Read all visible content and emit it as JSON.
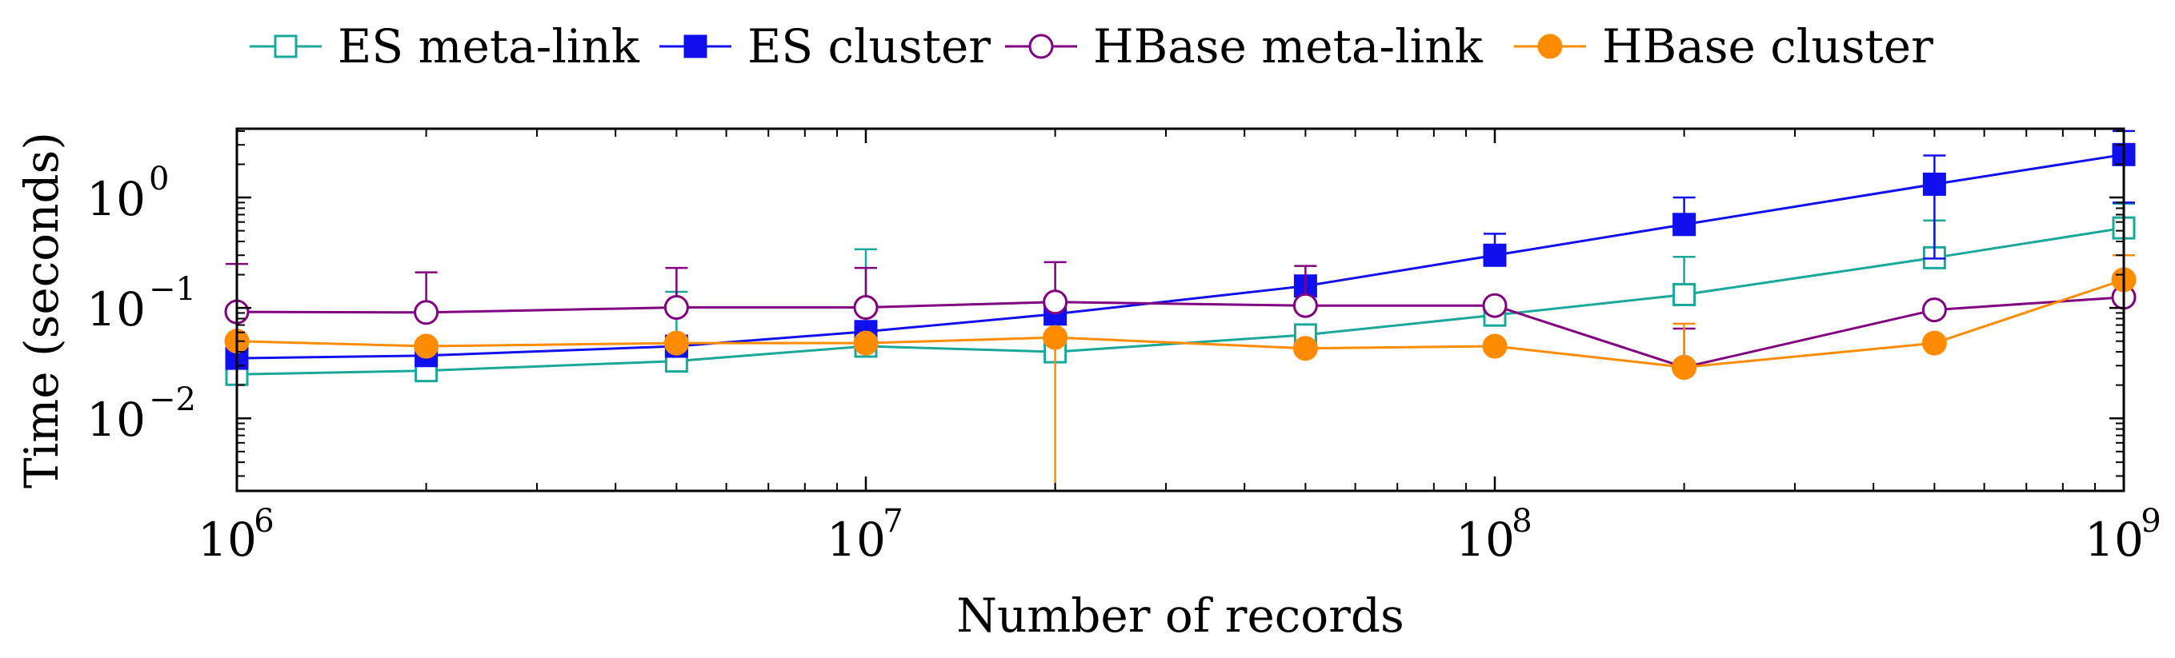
{
  "chart_data": {
    "type": "line",
    "title": "",
    "xlabel": "Number of records",
    "ylabel": "Time (seconds)",
    "xscale": "log",
    "yscale": "log",
    "xlim": [
      1000000,
      1000000000
    ],
    "ylim": [
      0.0022,
      4.2
    ],
    "x_ticks": [
      {
        "value": 1000000,
        "base": "10",
        "exp": "6"
      },
      {
        "value": 10000000,
        "base": "10",
        "exp": "7"
      },
      {
        "value": 100000000,
        "base": "10",
        "exp": "8"
      },
      {
        "value": 1000000000,
        "base": "10",
        "exp": "9"
      }
    ],
    "y_ticks": [
      {
        "value": 0.01,
        "base": "10",
        "exp": "−2"
      },
      {
        "value": 0.1,
        "base": "10",
        "exp": "−1"
      },
      {
        "value": 1,
        "base": "10",
        "exp": "0"
      }
    ],
    "grid": false,
    "legend_position": "top",
    "x": [
      1000000,
      2000000,
      5000000,
      10000000,
      20000000,
      50000000,
      100000000,
      200000000,
      500000000,
      1000000000
    ],
    "series": [
      {
        "name": "ES meta-link",
        "color": "#1aa89a",
        "marker": "square-open",
        "values": [
          0.025,
          0.027,
          0.033,
          0.045,
          0.04,
          0.057,
          0.086,
          0.132,
          0.285,
          0.53
        ],
        "err_upper": [
          null,
          null,
          0.14,
          0.34,
          null,
          null,
          null,
          0.29,
          0.62,
          0.88
        ],
        "err_lower": [
          null,
          null,
          null,
          null,
          null,
          null,
          null,
          null,
          null,
          null
        ]
      },
      {
        "name": "ES cluster",
        "color": "#1010ee",
        "marker": "square-filled",
        "values": [
          0.035,
          0.037,
          0.045,
          0.061,
          0.088,
          0.158,
          0.3,
          0.57,
          1.32,
          2.45
        ],
        "err_upper": [
          null,
          null,
          null,
          null,
          null,
          null,
          0.47,
          1.0,
          2.4,
          4.0
        ],
        "err_lower": [
          null,
          null,
          null,
          null,
          null,
          null,
          null,
          null,
          0.28,
          0.9
        ]
      },
      {
        "name": "HBase meta-link",
        "color": "#800080",
        "marker": "circle-open",
        "values": [
          0.092,
          0.091,
          0.101,
          0.101,
          0.113,
          0.105,
          0.105,
          0.029,
          0.096,
          0.125
        ],
        "err_upper": [
          0.25,
          0.21,
          0.23,
          0.23,
          0.26,
          0.24,
          null,
          0.065,
          null,
          null
        ],
        "err_lower": [
          null,
          null,
          null,
          null,
          null,
          null,
          null,
          null,
          null,
          null
        ]
      },
      {
        "name": "HBase cluster",
        "color": "#ff8c00",
        "marker": "circle-filled",
        "values": [
          0.05,
          0.045,
          0.048,
          0.048,
          0.054,
          0.043,
          0.045,
          0.029,
          0.048,
          0.18
        ],
        "err_upper": [
          null,
          null,
          null,
          null,
          null,
          null,
          null,
          0.072,
          null,
          0.3
        ],
        "err_lower": [
          null,
          null,
          null,
          null,
          0.0022,
          null,
          null,
          null,
          null,
          null
        ]
      }
    ]
  }
}
